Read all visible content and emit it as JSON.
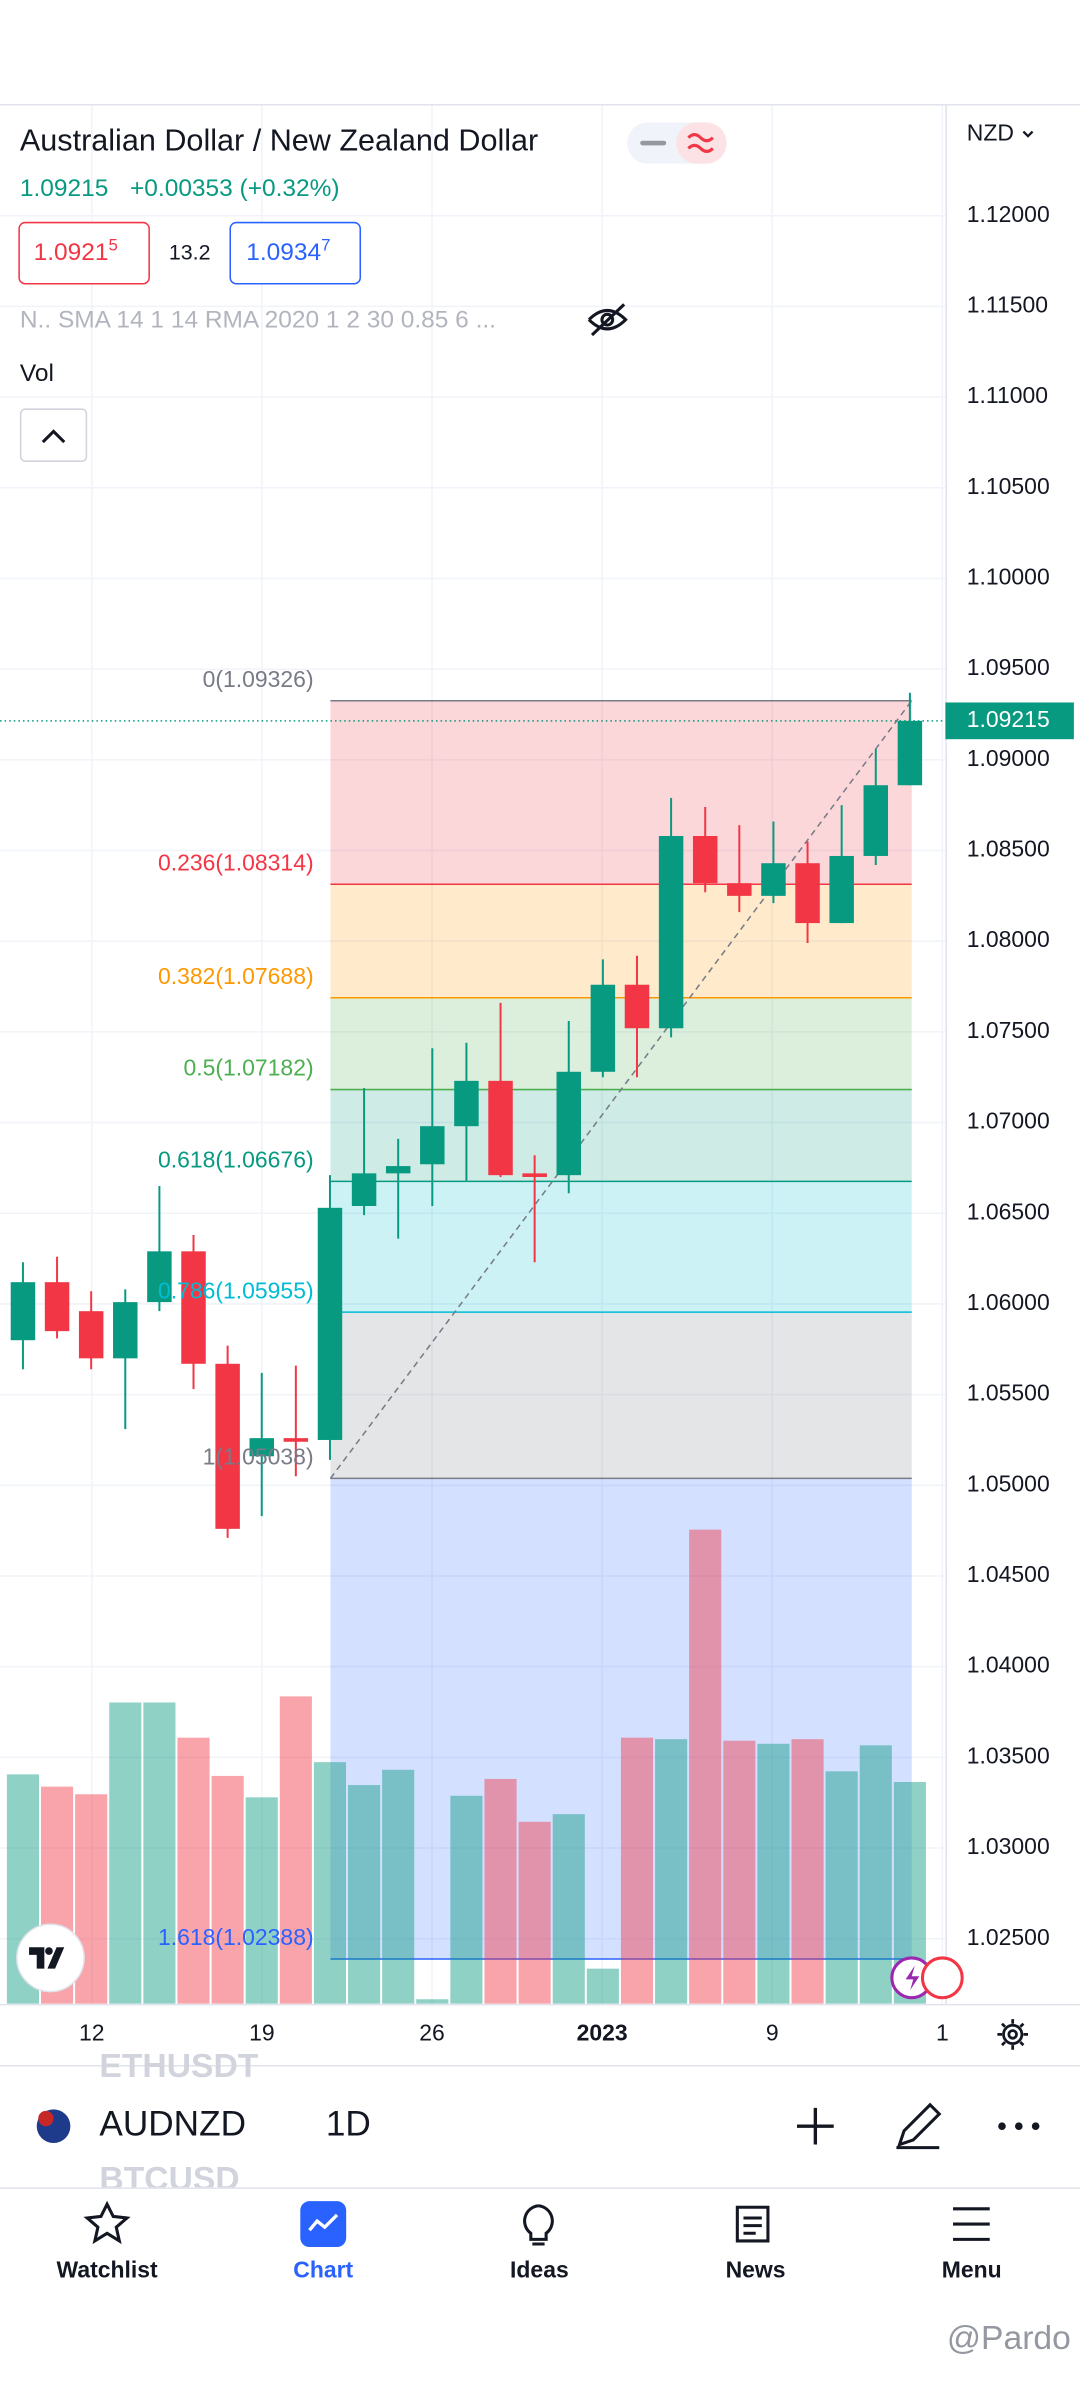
{
  "header": {
    "title": "Australian Dollar / New Zealand Dollar",
    "price": "1.09215",
    "change": "+0.00353 (+0.32%)",
    "bid_main": "1.0921",
    "bid_pip": "5",
    "spread": "13.2",
    "ask_main": "1.0934",
    "ask_pip": "7",
    "indicators": "N.. SMA 14 1 14 RMA 2020 1 2 30 0.85 6 ...",
    "vol_label": "Vol",
    "currency": "NZD"
  },
  "chart_data": {
    "type": "candlestick",
    "open": [
      1.058,
      1.0612,
      1.0596,
      1.057,
      1.0601,
      1.0629,
      1.0567,
      1.0516,
      1.0526,
      1.0525,
      1.0654,
      1.0672,
      1.0677,
      1.0698,
      1.0723,
      1.0672,
      1.0671,
      1.0728,
      1.0776,
      1.0752,
      1.0858,
      1.0832,
      1.0825,
      1.0843,
      1.081,
      1.0847,
      1.0886
    ],
    "high": [
      1.0623,
      1.0626,
      1.0607,
      1.0608,
      1.0665,
      1.0638,
      1.0577,
      1.0562,
      1.0566,
      1.0671,
      1.0719,
      1.0691,
      1.0741,
      1.0744,
      1.0766,
      1.0682,
      1.0756,
      1.079,
      1.0792,
      1.0879,
      1.0874,
      1.0864,
      1.0866,
      1.0855,
      1.0875,
      1.0906,
      1.0937
    ],
    "low": [
      1.0564,
      1.0581,
      1.0564,
      1.0531,
      1.0596,
      1.0553,
      1.0471,
      1.0483,
      1.0505,
      1.0514,
      1.0649,
      1.0636,
      1.0654,
      1.0668,
      1.067,
      1.0623,
      1.0661,
      1.0725,
      1.0725,
      1.0747,
      1.0827,
      1.0816,
      1.0821,
      1.0799,
      1.081,
      1.0842,
      1.0886
    ],
    "close": [
      1.0612,
      1.0585,
      1.057,
      1.0601,
      1.0629,
      1.0567,
      1.0476,
      1.0526,
      1.0524,
      1.0653,
      1.0672,
      1.0676,
      1.0698,
      1.0723,
      1.0671,
      1.067,
      1.0728,
      1.0776,
      1.0752,
      1.0858,
      1.0832,
      1.0825,
      1.0843,
      1.081,
      1.0847,
      1.0886,
      1.09215
    ],
    "volume": [
      150,
      142,
      137,
      197,
      197,
      174,
      149,
      135,
      201,
      158,
      143,
      153,
      3,
      136,
      147,
      119,
      124,
      23,
      174,
      173,
      310,
      172,
      170,
      173,
      152,
      169,
      145
    ],
    "up_color": "#089981",
    "down_color": "#f23645",
    "x_labels": [
      "12",
      "19",
      "26",
      "2023",
      "9",
      "1"
    ],
    "ylim": [
      1.02141,
      1.12616
    ],
    "yticks": [
      {
        "value": 1.12,
        "label": "1.12000"
      },
      {
        "value": 1.115,
        "label": "1.11500"
      },
      {
        "value": 1.11,
        "label": "1.11000"
      },
      {
        "value": 1.105,
        "label": "1.10500"
      },
      {
        "value": 1.1,
        "label": "1.10000"
      },
      {
        "value": 1.095,
        "label": "1.09500"
      },
      {
        "value": 1.09,
        "label": "1.09000"
      },
      {
        "value": 1.085,
        "label": "1.08500"
      },
      {
        "value": 1.08,
        "label": "1.08000"
      },
      {
        "value": 1.075,
        "label": "1.07500"
      },
      {
        "value": 1.07,
        "label": "1.07000"
      },
      {
        "value": 1.065,
        "label": "1.06500"
      },
      {
        "value": 1.06,
        "label": "1.06000"
      },
      {
        "value": 1.055,
        "label": "1.05500"
      },
      {
        "value": 1.05,
        "label": "1.05000"
      },
      {
        "value": 1.045,
        "label": "1.04500"
      },
      {
        "value": 1.04,
        "label": "1.04000"
      },
      {
        "value": 1.035,
        "label": "1.03500"
      },
      {
        "value": 1.03,
        "label": "1.03000"
      },
      {
        "value": 1.025,
        "label": "1.02500"
      }
    ],
    "last_price": 1.09215,
    "grid": true,
    "fib": [
      {
        "label": "0(1.09326)",
        "value": 1.09326,
        "color": "#787b86"
      },
      {
        "label": "0.236(1.08314)",
        "value": 1.08314,
        "color": "#f23645"
      },
      {
        "label": "0.382(1.07688)",
        "value": 1.07688,
        "color": "#ff9800"
      },
      {
        "label": "0.5(1.07182)",
        "value": 1.07182,
        "color": "#4caf50"
      },
      {
        "label": "0.618(1.06676)",
        "value": 1.06676,
        "color": "#089981"
      },
      {
        "label": "0.786(1.05955)",
        "value": 1.05955,
        "color": "#00bcd4"
      },
      {
        "label": "1(1.05038)",
        "value": 1.05038,
        "color": "#787b86"
      },
      {
        "label": "1.618(1.02388)",
        "value": 1.02388,
        "color": "#2962ff"
      }
    ]
  },
  "symbol_bar": {
    "faded_above": "ETHUSDT",
    "symbol": "AUDNZD",
    "interval": "1D",
    "faded_below": "BTCUSD"
  },
  "nav": [
    "Watchlist",
    "Chart",
    "Ideas",
    "News",
    "Menu"
  ],
  "watermark": "@Pardo"
}
